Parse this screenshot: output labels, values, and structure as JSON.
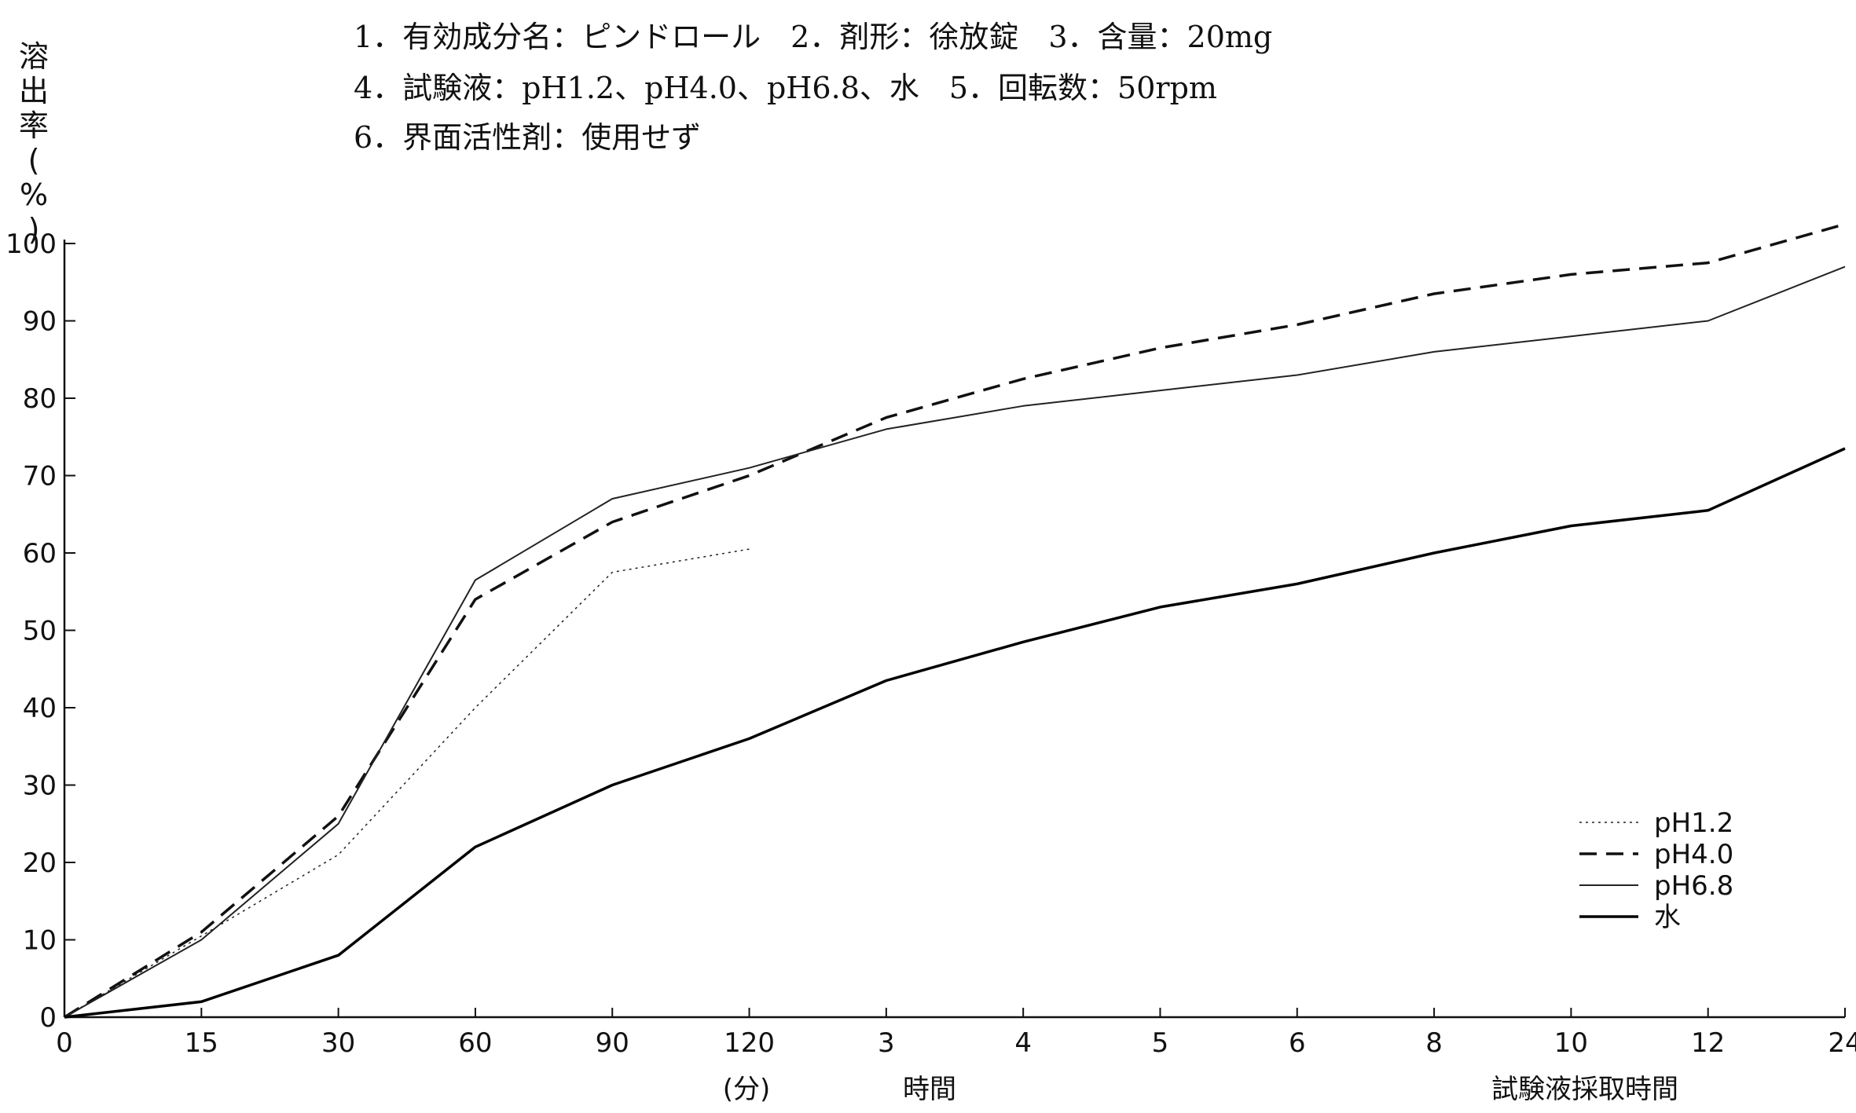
{
  "conditions": {
    "line1": "1．有効成分名：ピンドロール　2．剤形：徐放錠　3．含量：20mg",
    "line2": "4．試験液：pH1.2、pH4.0、pH6.8、水　5．回転数：50rpm",
    "line3": "6．界面活性剤：使用せず"
  },
  "axis": {
    "y_label_chars": [
      "溶",
      "出",
      "率",
      "(",
      "%",
      ")"
    ],
    "x_unit_minutes": "(分)",
    "x_unit_hours": "時間",
    "x_title": "試験液採取時間"
  },
  "chart_data": {
    "type": "line",
    "title": "",
    "xlabel": "試験液採取時間",
    "ylabel": "溶出率(%)",
    "ylim": [
      0,
      100
    ],
    "y_ticks": [
      0,
      10,
      20,
      30,
      40,
      50,
      60,
      70,
      80,
      90,
      100
    ],
    "x": [
      "0",
      "15",
      "30",
      "60",
      "90",
      "120",
      "3",
      "4",
      "5",
      "6",
      "8",
      "10",
      "12",
      "24"
    ],
    "grid": false,
    "legend_position": "bottom-right",
    "series": [
      {
        "name": "pH1.2",
        "style": "dotted",
        "color": "#222222",
        "width": 1.5,
        "values": [
          0,
          10.5,
          21,
          40,
          57.5,
          60.5,
          null,
          null,
          null,
          null,
          null,
          null,
          null,
          null
        ]
      },
      {
        "name": "pH4.0",
        "style": "dashed",
        "color": "#111111",
        "width": 3.5,
        "values": [
          0,
          11,
          26,
          54,
          64,
          70,
          77.5,
          82.5,
          86.5,
          89.5,
          93.5,
          96,
          97.5,
          102.5
        ]
      },
      {
        "name": "pH6.8",
        "style": "solid",
        "color": "#222222",
        "width": 2,
        "values": [
          0,
          10,
          25,
          56.5,
          67,
          71,
          76,
          79,
          81,
          83,
          86,
          88,
          90,
          97
        ]
      },
      {
        "name": "水",
        "style": "solid",
        "color": "#000000",
        "width": 3.5,
        "values": [
          0,
          2,
          8,
          22,
          30,
          36,
          43.5,
          48.5,
          53,
          56,
          60,
          63.5,
          65.5,
          73.5
        ]
      }
    ]
  }
}
